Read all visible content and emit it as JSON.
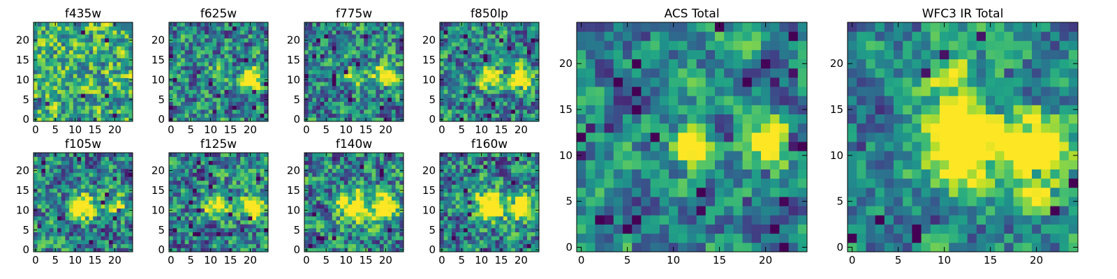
{
  "chart_data": {
    "type": "heatmap",
    "colormap": "viridis",
    "grid": false,
    "panels": [
      {
        "title": "f435w",
        "xlim": [
          0,
          24
        ],
        "ylim": [
          0,
          24
        ],
        "xticks": [
          0,
          5,
          10,
          15,
          20
        ],
        "yticks": [
          0,
          5,
          10,
          15,
          20
        ],
        "hotspots": []
      },
      {
        "title": "f625w",
        "xlim": [
          0,
          24
        ],
        "ylim": [
          0,
          24
        ],
        "xticks": [
          0,
          5,
          10,
          15,
          20
        ],
        "yticks": [
          0,
          5,
          10,
          15,
          20
        ],
        "hotspots": [
          [
            20,
            10,
            2,
            0.9
          ],
          [
            12,
            11,
            1.5,
            0.6
          ]
        ]
      },
      {
        "title": "f775w",
        "xlim": [
          0,
          24
        ],
        "ylim": [
          0,
          24
        ],
        "xticks": [
          0,
          5,
          10,
          15,
          20
        ],
        "yticks": [
          0,
          5,
          10,
          15,
          20
        ],
        "hotspots": [
          [
            20,
            11,
            2,
            0.9
          ],
          [
            12,
            11,
            1.5,
            0.6
          ]
        ]
      },
      {
        "title": "f850lp",
        "xlim": [
          0,
          24
        ],
        "ylim": [
          0,
          24
        ],
        "xticks": [
          0,
          5,
          10,
          15,
          20
        ],
        "yticks": [
          0,
          5,
          10,
          15,
          20
        ],
        "hotspots": [
          [
            20,
            10,
            2,
            0.8
          ],
          [
            12,
            11,
            1.8,
            0.8
          ]
        ]
      },
      {
        "title": "f105w",
        "xlim": [
          0,
          24
        ],
        "ylim": [
          0,
          24
        ],
        "xticks": [
          0,
          5,
          10,
          15,
          20
        ],
        "yticks": [
          0,
          5,
          10,
          15,
          20
        ],
        "hotspots": [
          [
            12,
            11,
            2,
            0.9
          ],
          [
            20,
            11,
            2,
            0.5
          ]
        ]
      },
      {
        "title": "f125w",
        "xlim": [
          0,
          24
        ],
        "ylim": [
          0,
          24
        ],
        "xticks": [
          0,
          5,
          10,
          15,
          20
        ],
        "yticks": [
          0,
          5,
          10,
          15,
          20
        ],
        "hotspots": [
          [
            12,
            11,
            2,
            0.8
          ],
          [
            20,
            11,
            2,
            0.8
          ]
        ]
      },
      {
        "title": "f140w",
        "xlim": [
          0,
          24
        ],
        "ylim": [
          0,
          24
        ],
        "xticks": [
          0,
          5,
          10,
          15,
          20
        ],
        "yticks": [
          0,
          5,
          10,
          15,
          20
        ],
        "hotspots": [
          [
            12,
            11,
            2.5,
            0.9
          ],
          [
            20,
            11,
            2.2,
            0.9
          ]
        ]
      },
      {
        "title": "f160w",
        "xlim": [
          0,
          24
        ],
        "ylim": [
          0,
          24
        ],
        "xticks": [
          0,
          5,
          10,
          15,
          20
        ],
        "yticks": [
          0,
          5,
          10,
          15,
          20
        ],
        "hotspots": [
          [
            12,
            11,
            2.5,
            0.9
          ],
          [
            20,
            11,
            2.2,
            0.9
          ]
        ]
      },
      {
        "title": "ACS Total",
        "xlim": [
          0,
          24
        ],
        "ylim": [
          0,
          24
        ],
        "xticks": [
          0,
          5,
          10,
          15,
          20
        ],
        "yticks": [
          0,
          5,
          10,
          15,
          20
        ],
        "hotspots": [
          [
            20,
            11,
            1.6,
            1.1
          ],
          [
            12,
            11,
            1.3,
            0.9
          ],
          [
            17,
            22,
            1.5,
            0.4
          ]
        ]
      },
      {
        "title": "WFC3 IR Total",
        "xlim": [
          0,
          24
        ],
        "ylim": [
          0,
          24
        ],
        "xticks": [
          0,
          5,
          10,
          15,
          20
        ],
        "yticks": [
          0,
          5,
          10,
          15,
          20
        ],
        "hotspots": [
          [
            12,
            11,
            3,
            1.0
          ],
          [
            20,
            11,
            2.5,
            0.9
          ],
          [
            10,
            19,
            2,
            0.35
          ],
          [
            20,
            5,
            1.5,
            0.35
          ]
        ]
      }
    ]
  }
}
